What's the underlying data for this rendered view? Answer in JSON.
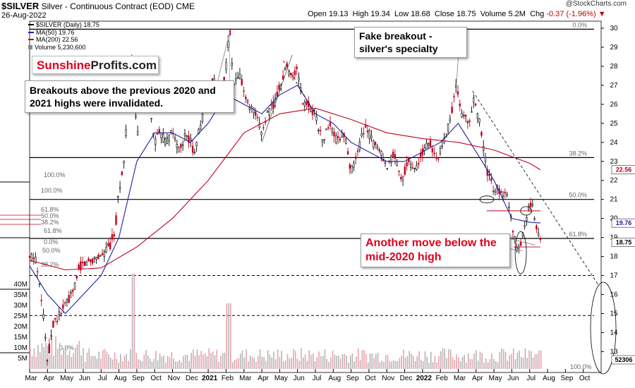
{
  "header": {
    "symbol": "$SILVER",
    "description": "Silver - Continuous Contract (EOD)",
    "exchange": "CME",
    "date": "26-Aug-2022",
    "watermark": "@StockCharts.com",
    "open_label": "Open",
    "open": "19.13",
    "high_label": "High",
    "high": "19.34",
    "low_label": "Low",
    "low": "18.68",
    "close_label": "Close",
    "close": "18.75",
    "volume_label": "Volume",
    "volume": "5.2M",
    "chg_label": "Chg",
    "chg": "-0.37 (-1.96%)"
  },
  "legend": [
    {
      "text": "$SILVER (Daily) 18.75",
      "color": "#000000"
    },
    {
      "text": "MA(50) 19.76",
      "color": "#2020a0"
    },
    {
      "text": "MA(200) 22.56",
      "color": "#c0001b"
    },
    {
      "text": "Volume 5,230,600",
      "color": "#888888"
    }
  ],
  "logo": {
    "part1": "Sunshine",
    "part2": "Profits.com"
  },
  "callouts": {
    "breakouts": "Breakouts above the previous 2020 and 2021 highs were invalidated.",
    "fake": "Fake breakout - silver's specialty",
    "another": "Another move below the mid-2020 high"
  },
  "colors": {
    "up": "#000000",
    "down": "#c0001b",
    "ma50": "#2020a0",
    "ma200": "#c0001b",
    "accent": "#e0001b"
  },
  "chart_data": {
    "type": "candlestick",
    "title": "$SILVER Silver - Continuous Contract (EOD)",
    "price_axis": {
      "ticks": [
        13,
        14,
        15,
        16,
        17,
        18,
        19,
        20,
        21,
        22,
        23,
        24,
        25,
        26,
        27,
        28,
        29,
        30
      ],
      "ylim": [
        12.2,
        30.2
      ],
      "position": "right"
    },
    "volume_axis": {
      "ticks": [
        "5M",
        "10M",
        "15M",
        "20M",
        "25M",
        "30M",
        "35M",
        "40M"
      ],
      "position": "left"
    },
    "x_axis": {
      "labels": [
        "Mar",
        "Apr",
        "May",
        "Jun",
        "Jul",
        "Aug",
        "Sep",
        "Oct",
        "Nov",
        "Dec",
        "2021",
        "Feb",
        "Mar",
        "Apr",
        "May",
        "Jun",
        "Jul",
        "Aug",
        "Sep",
        "Oct",
        "Nov",
        "Dec",
        "2022",
        "Feb",
        "Mar",
        "Apr",
        "May",
        "Jun",
        "Jul",
        "Aug",
        "Sep",
        "Oct"
      ]
    },
    "last_price_tag": "18.75",
    "ma50_tag": "19.76",
    "ma200_tag": "22.56",
    "volume_tag": "52306",
    "price_path": [
      [
        0,
        17.9
      ],
      [
        0.3,
        18.0
      ],
      [
        0.6,
        16.5
      ],
      [
        0.8,
        14.5
      ],
      [
        1.0,
        12.5
      ],
      [
        1.3,
        14.5
      ],
      [
        1.6,
        14.8
      ],
      [
        2.0,
        15.5
      ],
      [
        2.4,
        16.0
      ],
      [
        2.8,
        17.5
      ],
      [
        3.0,
        17.6
      ],
      [
        3.4,
        17.8
      ],
      [
        3.8,
        18.0
      ],
      [
        4.2,
        18.2
      ],
      [
        4.5,
        18.6
      ],
      [
        4.8,
        19.5
      ],
      [
        5.0,
        21.5
      ],
      [
        5.3,
        23.0
      ],
      [
        5.5,
        26.5
      ],
      [
        5.7,
        28.5
      ],
      [
        5.9,
        26.0
      ],
      [
        6.0,
        24.0
      ],
      [
        6.3,
        27.0
      ],
      [
        6.6,
        26.5
      ],
      [
        7.0,
        24.0
      ],
      [
        7.3,
        24.5
      ],
      [
        7.6,
        24.0
      ],
      [
        8.0,
        24.5
      ],
      [
        8.4,
        23.5
      ],
      [
        8.8,
        24.5
      ],
      [
        9.2,
        23.5
      ],
      [
        9.6,
        25.0
      ],
      [
        10.0,
        26.5
      ],
      [
        10.3,
        27.5
      ],
      [
        10.6,
        25.5
      ],
      [
        11.0,
        28.0
      ],
      [
        11.2,
        30.0
      ],
      [
        11.4,
        27.0
      ],
      [
        11.8,
        27.5
      ],
      [
        12.2,
        26.0
      ],
      [
        12.6,
        25.5
      ],
      [
        13.0,
        24.5
      ],
      [
        13.3,
        25.5
      ],
      [
        13.7,
        26.0
      ],
      [
        14.0,
        27.0
      ],
      [
        14.4,
        28.0
      ],
      [
        14.7,
        27.5
      ],
      [
        15.0,
        27.8
      ],
      [
        15.3,
        26.0
      ],
      [
        15.6,
        26.0
      ],
      [
        16.0,
        25.5
      ],
      [
        16.4,
        24.0
      ],
      [
        16.8,
        25.0
      ],
      [
        17.2,
        24.0
      ],
      [
        17.6,
        24.5
      ],
      [
        18.0,
        22.5
      ],
      [
        18.4,
        23.5
      ],
      [
        18.8,
        25.0
      ],
      [
        19.2,
        24.0
      ],
      [
        19.6,
        23.5
      ],
      [
        20.0,
        22.5
      ],
      [
        20.4,
        23.5
      ],
      [
        20.8,
        22.0
      ],
      [
        21.2,
        23.0
      ],
      [
        21.6,
        22.5
      ],
      [
        22.0,
        23.5
      ],
      [
        22.4,
        24.0
      ],
      [
        22.8,
        23.0
      ],
      [
        23.2,
        24.0
      ],
      [
        23.6,
        25.5
      ],
      [
        23.9,
        27.0
      ],
      [
        24.2,
        25.5
      ],
      [
        24.6,
        25.0
      ],
      [
        24.9,
        26.3
      ],
      [
        25.2,
        25.0
      ],
      [
        25.6,
        22.5
      ],
      [
        26.0,
        21.5
      ],
      [
        26.4,
        21.5
      ],
      [
        26.8,
        21.0
      ],
      [
        27.0,
        19.8
      ],
      [
        27.3,
        18.4
      ],
      [
        27.6,
        19.0
      ],
      [
        27.9,
        20.5
      ],
      [
        28.1,
        20.8
      ],
      [
        28.4,
        19.5
      ],
      [
        28.6,
        18.75
      ]
    ],
    "ma50_path": [
      [
        0,
        17.5
      ],
      [
        1,
        16.0
      ],
      [
        2,
        15.0
      ],
      [
        3,
        16.0
      ],
      [
        4,
        17.0
      ],
      [
        5,
        19.0
      ],
      [
        6,
        23.0
      ],
      [
        7,
        24.5
      ],
      [
        8,
        24.5
      ],
      [
        9,
        24.0
      ],
      [
        10,
        25.0
      ],
      [
        11,
        26.5
      ],
      [
        12,
        26.0
      ],
      [
        13,
        25.5
      ],
      [
        14,
        26.5
      ],
      [
        15,
        27.0
      ],
      [
        16,
        25.5
      ],
      [
        17,
        25.0
      ],
      [
        18,
        24.0
      ],
      [
        19,
        23.5
      ],
      [
        20,
        23.0
      ],
      [
        21,
        23.0
      ],
      [
        22,
        23.5
      ],
      [
        23,
        24.0
      ],
      [
        24,
        25.0
      ],
      [
        25,
        23.5
      ],
      [
        26,
        22.0
      ],
      [
        27,
        20.0
      ],
      [
        28,
        19.8
      ],
      [
        28.6,
        19.76
      ]
    ],
    "ma200_path": [
      [
        0,
        17.8
      ],
      [
        2,
        17.3
      ],
      [
        4,
        17.4
      ],
      [
        6,
        18.5
      ],
      [
        8,
        20.0
      ],
      [
        10,
        22.0
      ],
      [
        12,
        24.5
      ],
      [
        14,
        25.5
      ],
      [
        16,
        25.8
      ],
      [
        18,
        25.2
      ],
      [
        20,
        24.5
      ],
      [
        22,
        24.2
      ],
      [
        24,
        24.0
      ],
      [
        26,
        23.6
      ],
      [
        28,
        22.9
      ],
      [
        28.6,
        22.56
      ]
    ],
    "horizontal_levels": [
      {
        "price": 29.95,
        "label": "0.0%",
        "style": "solid"
      },
      {
        "price": 23.2,
        "label": "38.2%",
        "style": "solid"
      },
      {
        "price": 21.0,
        "label": "50.0%",
        "style": "solid"
      },
      {
        "price": 18.95,
        "label": "61.8%",
        "style": "solid"
      },
      {
        "price": 17.0,
        "label": "",
        "style": "dashed"
      },
      {
        "price": 14.9,
        "label": "",
        "style": "dashed"
      }
    ],
    "left_fib_labels": [
      "100.0%",
      "100.0%",
      "61.8%",
      "50.0%",
      "38.2%",
      "61.8%",
      "0.0%",
      "50.0%",
      "38.2%",
      "0.0%"
    ],
    "bottom_fib_label": "100.0%",
    "volume_peaks_M": [
      45,
      31
    ]
  }
}
